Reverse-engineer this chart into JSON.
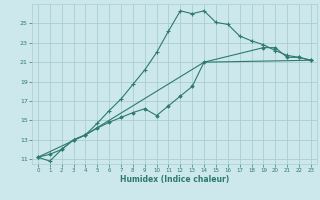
{
  "xlabel": "Humidex (Indice chaleur)",
  "bg_color": "#cce8ec",
  "grid_color": "#aacdd4",
  "line_color": "#2d7a6e",
  "xlim": [
    -0.5,
    23.5
  ],
  "ylim": [
    10.5,
    27.0
  ],
  "xticks": [
    0,
    1,
    2,
    3,
    4,
    5,
    6,
    7,
    8,
    9,
    10,
    11,
    12,
    13,
    14,
    15,
    16,
    17,
    18,
    19,
    20,
    21,
    22,
    23
  ],
  "yticks": [
    11,
    13,
    15,
    17,
    19,
    21,
    23,
    25
  ],
  "line1_x": [
    0,
    1,
    2,
    3,
    4,
    5,
    6,
    7,
    8,
    9,
    10,
    11,
    12,
    13,
    14,
    15,
    16,
    17,
    18,
    19,
    20,
    21,
    22,
    23
  ],
  "line1_y": [
    11.2,
    10.8,
    12.0,
    13.0,
    13.5,
    14.7,
    16.0,
    17.2,
    18.7,
    20.2,
    22.0,
    24.2,
    26.3,
    26.0,
    26.3,
    25.1,
    24.9,
    23.7,
    23.2,
    22.8,
    22.2,
    21.7,
    21.5,
    21.2
  ],
  "line2_x": [
    0,
    1,
    2,
    3,
    4,
    5,
    6,
    7,
    8,
    9,
    10,
    11,
    12,
    13,
    14,
    19,
    20,
    21,
    22,
    23
  ],
  "line2_y": [
    11.2,
    11.5,
    12.0,
    13.0,
    13.5,
    14.2,
    14.8,
    15.3,
    15.8,
    16.2,
    15.5,
    16.5,
    17.5,
    18.5,
    21.0,
    22.5,
    22.5,
    21.5,
    21.5,
    21.2
  ],
  "line3_x": [
    0,
    4,
    14,
    23
  ],
  "line3_y": [
    11.2,
    13.5,
    21.0,
    21.2
  ]
}
